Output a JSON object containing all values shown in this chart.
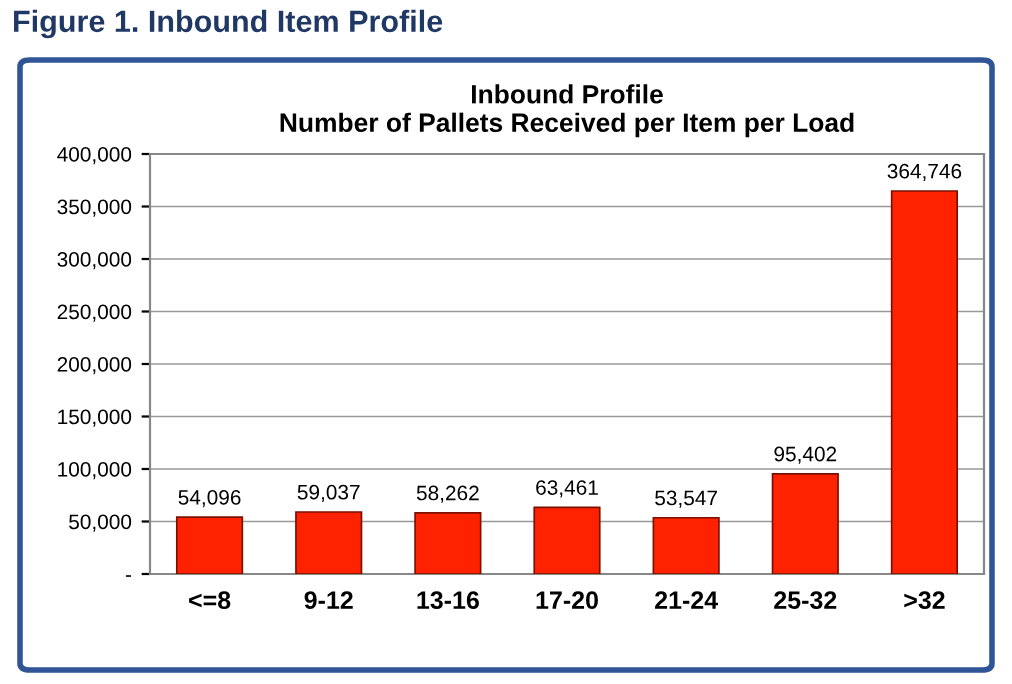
{
  "chart_data": {
    "type": "bar",
    "title": "Inbound Profile\nNumber of Pallets Received per Item per Load",
    "annotations": [
      "Figure 1. Inbound Item Profile"
    ],
    "categories": [
      "<=8",
      "9-12",
      "13-16",
      "17-20",
      "21-24",
      "25-32",
      ">32"
    ],
    "values": [
      54096,
      59037,
      58262,
      63461,
      53547,
      95402,
      364746
    ],
    "value_labels": [
      "54,096",
      "59,037",
      "58,262",
      "63,461",
      "53,547",
      "95,402",
      "364,746"
    ],
    "color": "#ff2200",
    "grid": "y",
    "legend": false,
    "ylim": [
      0,
      400000
    ],
    "yticks": [
      {
        "value": 0,
        "label": "-"
      },
      {
        "value": 50000,
        "label": "50,000"
      },
      {
        "value": 100000,
        "label": "100,000"
      },
      {
        "value": 150000,
        "label": "150,000"
      },
      {
        "value": 200000,
        "label": "200,000"
      },
      {
        "value": 250000,
        "label": "250,000"
      },
      {
        "value": 300000,
        "label": "300,000"
      },
      {
        "value": 350000,
        "label": "350,000"
      },
      {
        "value": 400000,
        "label": "400,000"
      }
    ]
  }
}
